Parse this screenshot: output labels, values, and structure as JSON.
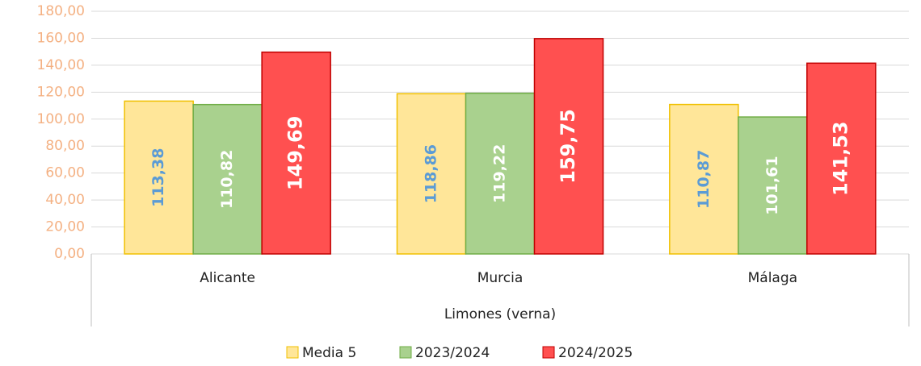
{
  "chart_data": {
    "type": "bar",
    "categories": [
      "Alicante",
      "Murcia",
      "Málaga"
    ],
    "group_label": "Limones (verna)",
    "series": [
      {
        "name": "Media 5",
        "color": "#ffe699",
        "values": [
          113.38,
          118.86,
          110.87
        ],
        "value_labels": [
          "113,38",
          "118,86",
          "110,87"
        ]
      },
      {
        "name": "2023/2024",
        "color": "#a9d18e",
        "values": [
          110.82,
          119.22,
          101.61
        ],
        "value_labels": [
          "110,82",
          "119,22",
          "101,61"
        ]
      },
      {
        "name": "2024/2025",
        "color": "#ff5050",
        "values": [
          149.69,
          159.75,
          141.53
        ],
        "value_labels": [
          "149,69",
          "159,75",
          "141,53"
        ]
      }
    ],
    "ylim": [
      0,
      180
    ],
    "yticks": [
      {
        "value": 0,
        "label": "0,00"
      },
      {
        "value": 20,
        "label": "20,00"
      },
      {
        "value": 40,
        "label": "40,00"
      },
      {
        "value": 60,
        "label": "60,00"
      },
      {
        "value": 80,
        "label": "80,00"
      },
      {
        "value": 100,
        "label": "100,00"
      },
      {
        "value": 120,
        "label": "120,00"
      },
      {
        "value": 140,
        "label": "140,00"
      },
      {
        "value": 160,
        "label": "160,00"
      },
      {
        "value": 180,
        "label": "180,00"
      }
    ],
    "grid": true,
    "legend": "bottom"
  }
}
